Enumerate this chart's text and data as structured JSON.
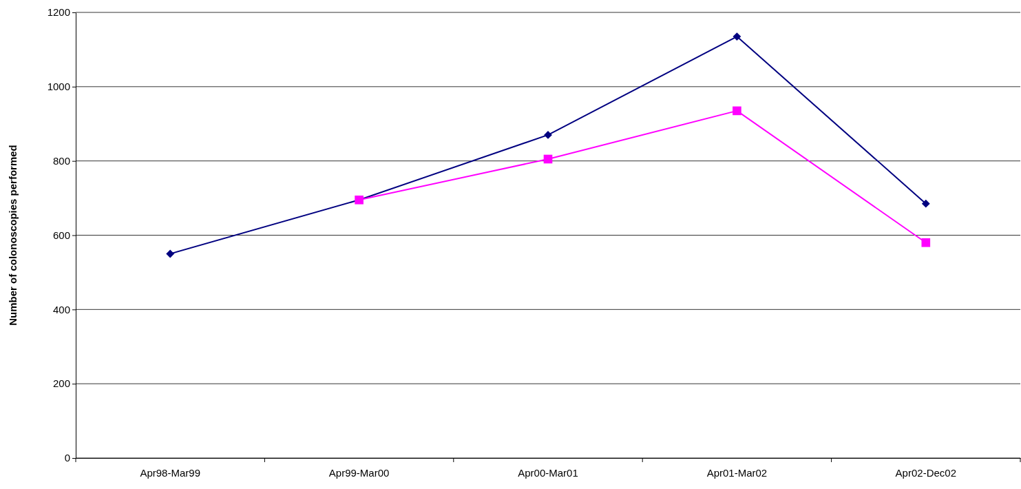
{
  "chart_data": {
    "type": "line",
    "ylabel": "Number of colonoscopies performed",
    "categories": [
      "Apr98-Mar99",
      "Apr99-Mar00",
      "Apr00-Mar01",
      "Apr01-Mar02",
      "Apr02-Dec02"
    ],
    "series": [
      {
        "color": "#000080",
        "marker": "diamond",
        "values": [
          550,
          695,
          870,
          1135,
          685
        ]
      },
      {
        "color": "#ff00ff",
        "marker": "square",
        "values": [
          null,
          695,
          805,
          935,
          580
        ]
      }
    ],
    "ylim": [
      0,
      1200
    ],
    "yticks": [
      0,
      200,
      400,
      600,
      800,
      1000,
      1200
    ],
    "grid": "y"
  }
}
